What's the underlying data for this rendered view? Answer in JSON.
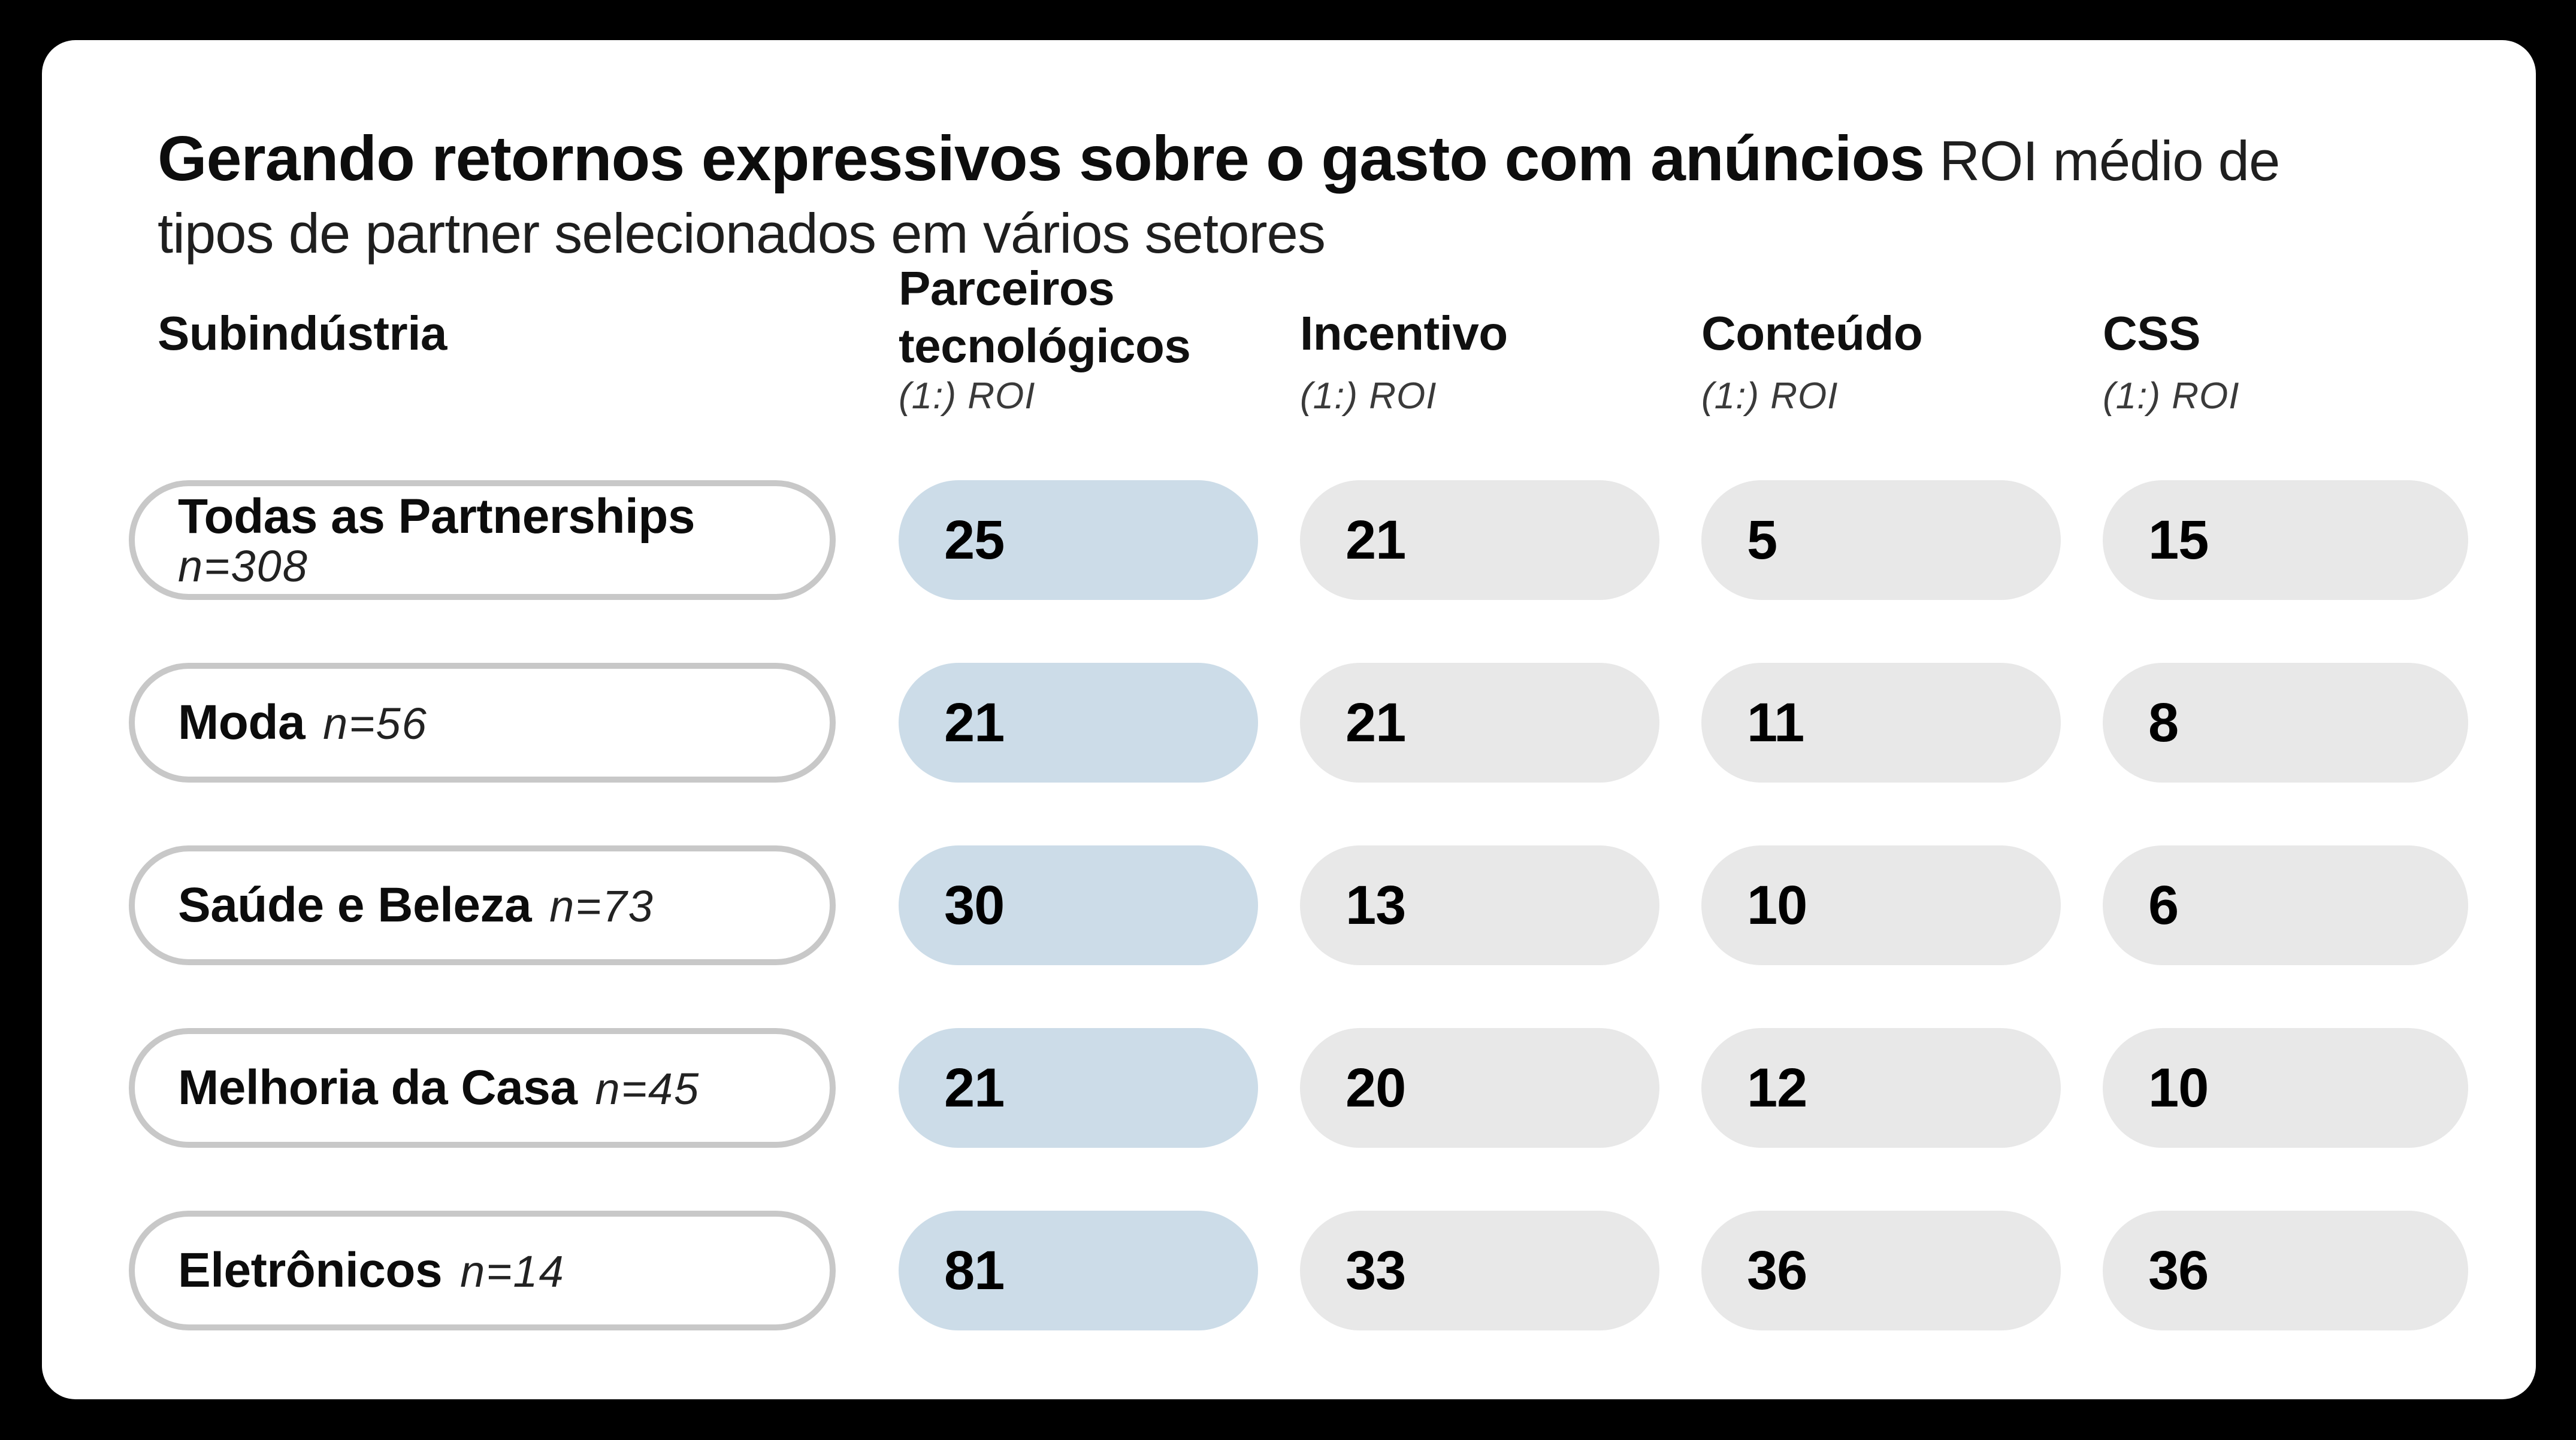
{
  "title": {
    "bold": "Gerando retornos expressivos sobre o gasto com anúncios",
    "regular": " ROI médio de tipos de partner selecionados em vários setores"
  },
  "table": {
    "row_header_label": "Subindústria",
    "columns": [
      {
        "label": "Parceiros tecnológicos",
        "sub": "(1:) ROI"
      },
      {
        "label": "Incentivo",
        "sub": "(1:) ROI"
      },
      {
        "label": "Conteúdo",
        "sub": "(1:) ROI"
      },
      {
        "label": "CSS",
        "sub": "(1:) ROI"
      }
    ],
    "rows": [
      {
        "label": "Todas as Partnerships",
        "n": "n=308",
        "values": [
          25,
          21,
          5,
          15
        ]
      },
      {
        "label": "Moda",
        "n": "n=56",
        "values": [
          21,
          21,
          11,
          8
        ]
      },
      {
        "label": "Saúde e Beleza",
        "n": "n=73",
        "values": [
          30,
          13,
          10,
          6
        ]
      },
      {
        "label": "Melhoria da Casa",
        "n": "n=45",
        "values": [
          21,
          20,
          12,
          10
        ]
      },
      {
        "label": "Eletrônicos",
        "n": "n=14",
        "values": [
          81,
          33,
          36,
          36
        ]
      }
    ]
  },
  "colors": {
    "background": "#000000",
    "card": "#ffffff",
    "pill_highlight": "#ccdce8",
    "pill_default": "#e8e8e8",
    "label_pill_border": "#c8c8c8"
  },
  "chart_data": {
    "type": "table",
    "title": "Gerando retornos expressivos sobre o gasto com anúncios",
    "subtitle": "ROI médio de tipos de partner selecionados em vários setores",
    "row_dimension": "Subindústria",
    "columns": [
      "Parceiros tecnológicos (1:) ROI",
      "Incentivo (1:) ROI",
      "Conteúdo (1:) ROI",
      "CSS (1:) ROI"
    ],
    "rows": [
      {
        "category": "Todas as Partnerships",
        "n": 308,
        "values": [
          25,
          21,
          5,
          15
        ]
      },
      {
        "category": "Moda",
        "n": 56,
        "values": [
          21,
          21,
          11,
          8
        ]
      },
      {
        "category": "Saúde e Beleza",
        "n": 73,
        "values": [
          30,
          13,
          10,
          6
        ]
      },
      {
        "category": "Melhoria da Casa",
        "n": 45,
        "values": [
          21,
          20,
          12,
          10
        ]
      },
      {
        "category": "Eletrônicos",
        "n": 14,
        "values": [
          81,
          33,
          36,
          36
        ]
      }
    ],
    "highlighted_column": "Parceiros tecnológicos",
    "legend_position": "none",
    "grid": false
  }
}
